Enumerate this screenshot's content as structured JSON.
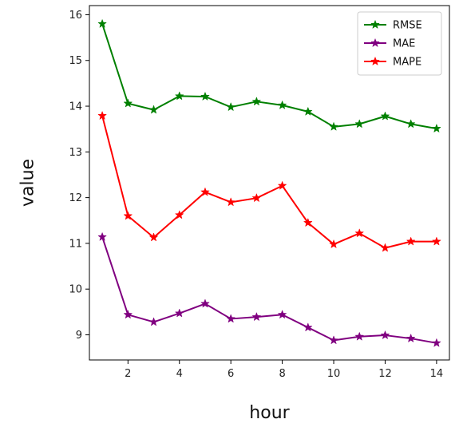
{
  "chart_data": {
    "type": "line",
    "title": "",
    "xlabel": "hour",
    "ylabel": "value",
    "x": [
      1,
      2,
      3,
      4,
      5,
      6,
      7,
      8,
      9,
      10,
      11,
      12,
      13,
      14
    ],
    "xlim": [
      0.5,
      14.5
    ],
    "ylim": [
      8.45,
      16.2
    ],
    "xticks": [
      2,
      4,
      6,
      8,
      10,
      12,
      14
    ],
    "yticks": [
      9,
      10,
      11,
      12,
      13,
      14,
      15,
      16
    ],
    "grid": false,
    "legend_position": "top-right",
    "marker": "star",
    "series": [
      {
        "name": "RMSE",
        "color": "#008000",
        "values": [
          15.8,
          14.06,
          13.92,
          14.22,
          14.21,
          13.98,
          14.1,
          14.02,
          13.88,
          13.55,
          13.61,
          13.78,
          13.61,
          13.51
        ]
      },
      {
        "name": "MAE",
        "color": "#800080",
        "values": [
          11.14,
          9.44,
          9.28,
          9.47,
          9.68,
          9.35,
          9.39,
          9.44,
          9.16,
          8.88,
          8.96,
          8.99,
          8.92,
          8.82
        ]
      },
      {
        "name": "MAPE",
        "color": "#ff0000",
        "values": [
          13.79,
          11.6,
          11.13,
          11.62,
          12.12,
          11.9,
          11.99,
          12.26,
          11.45,
          10.98,
          11.22,
          10.9,
          11.04,
          11.04
        ]
      }
    ]
  }
}
